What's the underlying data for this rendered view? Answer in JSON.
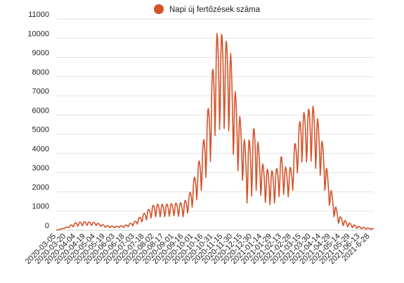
{
  "chart_data": {
    "type": "line",
    "title": "",
    "xlabel": "",
    "ylabel": "",
    "legend": {
      "placement": "top-center",
      "entries": [
        "Napi új fertőzések száma"
      ]
    },
    "grid": {
      "y": true,
      "x": false
    },
    "ylim": [
      0,
      11000
    ],
    "yticks": [
      0,
      1000,
      2000,
      3000,
      4000,
      5000,
      6000,
      7000,
      8000,
      9000,
      10000,
      11000
    ],
    "date_range": [
      "2020-03-05",
      "2021-07-04"
    ],
    "xtick_labels": [
      "2020-03-05",
      "2020-03-20",
      "2020-04-04",
      "2020-04-19",
      "2020-05-04",
      "2020-05-19",
      "2020-06-03",
      "2020-06-18",
      "2020-07-03",
      "2020-07-18",
      "2020-08-02",
      "2020-08-17",
      "2020-09-01",
      "2020-09-16",
      "2020-10-01",
      "2020-10-16",
      "2020-10-31",
      "2020-11-15",
      "2020-11-30",
      "2020-12-15",
      "2020-12-30",
      "2021-01-14",
      "2021-01-29",
      "2021-02-13",
      "2021-02-28",
      "2021-03-15",
      "2021-03-30",
      "2021-04-14",
      "2021-04-29",
      "2021-05-14",
      "2021-05-29",
      "2021-06-13",
      "2021-6-28"
    ],
    "series": [
      {
        "name": "Napi új fertőzések száma",
        "color": "#d4532b",
        "x": [
          "2020-03-05",
          "2020-03-20",
          "2020-04-04",
          "2020-04-19",
          "2020-05-04",
          "2020-05-19",
          "2020-06-03",
          "2020-06-18",
          "2020-07-03",
          "2020-07-18",
          "2020-08-02",
          "2020-08-17",
          "2020-09-01",
          "2020-09-16",
          "2020-09-24",
          "2020-10-01",
          "2020-10-08",
          "2020-10-16",
          "2020-10-24",
          "2020-10-31",
          "2020-11-04",
          "2020-11-08",
          "2020-11-12",
          "2020-11-15",
          "2020-11-19",
          "2020-11-23",
          "2020-11-27",
          "2020-11-30",
          "2020-12-05",
          "2020-12-10",
          "2020-12-15",
          "2020-12-20",
          "2020-12-25",
          "2020-12-30",
          "2021-01-04",
          "2021-01-09",
          "2021-01-14",
          "2021-01-20",
          "2021-01-29",
          "2021-02-05",
          "2021-02-13",
          "2021-02-20",
          "2021-02-28",
          "2021-03-05",
          "2021-03-10",
          "2021-03-15",
          "2021-03-20",
          "2021-03-25",
          "2021-03-30",
          "2021-04-04",
          "2021-04-09",
          "2021-04-14",
          "2021-04-19",
          "2021-04-24",
          "2021-04-29",
          "2021-05-04",
          "2021-05-09",
          "2021-05-14",
          "2021-05-21",
          "2021-05-29",
          "2021-06-06",
          "2021-06-13",
          "2021-06-20",
          "2021-06-28",
          "2021-07-04"
        ],
        "high": [
          0,
          150,
          400,
          450,
          400,
          250,
          200,
          250,
          450,
          900,
          1350,
          1350,
          1400,
          1450,
          1800,
          2600,
          3400,
          4600,
          6500,
          8600,
          10300,
          10200,
          10100,
          10400,
          9800,
          10000,
          9200,
          8100,
          7000,
          6100,
          5200,
          4400,
          4700,
          5000,
          5700,
          4300,
          3500,
          3200,
          3100,
          3200,
          3900,
          3200,
          3300,
          4500,
          5000,
          6300,
          6100,
          6200,
          6700,
          6300,
          5800,
          5000,
          4100,
          3000,
          2200,
          1500,
          1000,
          700,
          500,
          350,
          250,
          180,
          130,
          100,
          80
        ],
        "low": [
          0,
          100,
          200,
          250,
          250,
          150,
          130,
          150,
          250,
          500,
          700,
          700,
          750,
          700,
          950,
          1300,
          1700,
          2300,
          3200,
          4100,
          5200,
          5500,
          5000,
          5300,
          5300,
          5400,
          4500,
          4100,
          3400,
          2900,
          2600,
          1500,
          1300,
          1900,
          2100,
          2000,
          1700,
          1400,
          1300,
          1500,
          2000,
          1700,
          1800,
          2500,
          3100,
          3500,
          3800,
          3400,
          3600,
          3300,
          3100,
          2800,
          2200,
          1600,
          1100,
          700,
          400,
          300,
          200,
          150,
          100,
          80,
          60,
          50,
          40
        ]
      }
    ]
  }
}
